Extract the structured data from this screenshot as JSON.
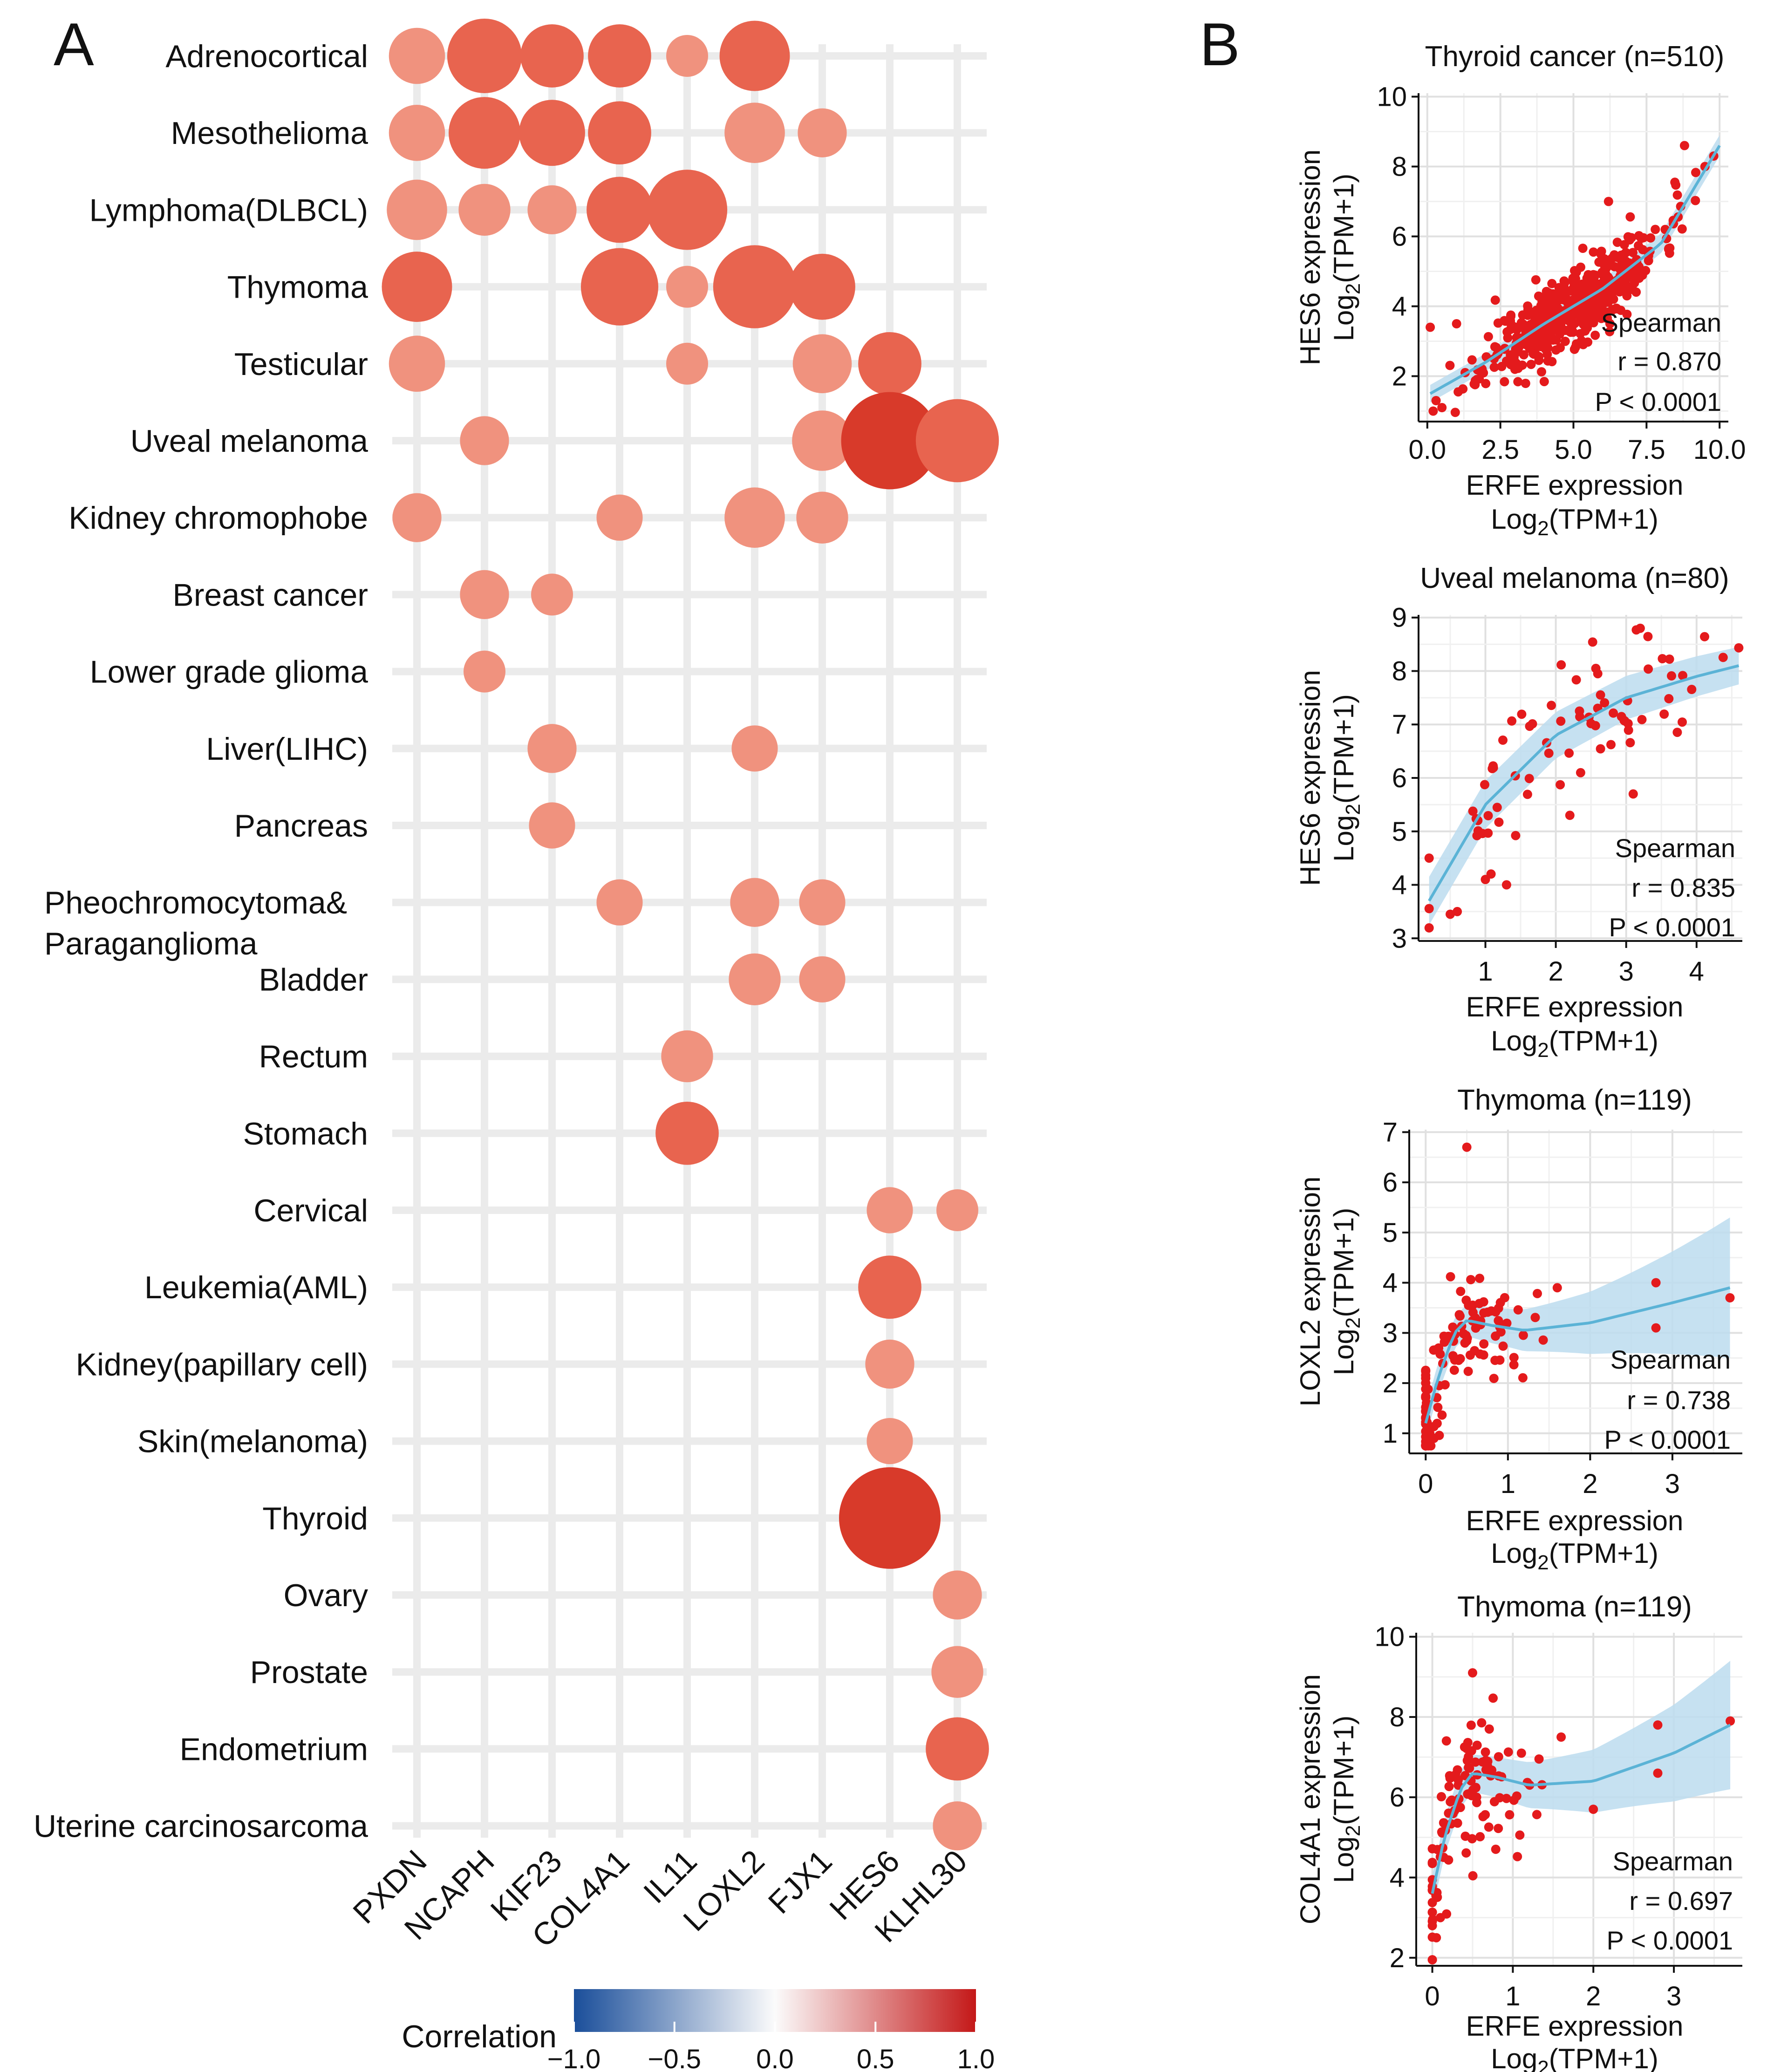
{
  "panel_labels": {
    "a": "A",
    "b": "B"
  },
  "colors": {
    "grid_bg": "#ebebeb",
    "dot_weak": "#f0927e",
    "dot_mid": "#e8644f",
    "dot_strong": "#d83a2a",
    "point": "#e41a1c",
    "fit_line": "#5bb3d6",
    "ci_band": "#bcdcee",
    "scale_neg": "#1a4e9a",
    "scale_mid": "#fbfbfb",
    "scale_pos": "#c41818"
  },
  "chart_data": [
    {
      "id": "dot",
      "type": "bubble",
      "genes": [
        "PXDN",
        "NCAPH",
        "KIF23",
        "COL4A1",
        "IL11",
        "LOXL2",
        "FJX1",
        "HES6",
        "KLHL30"
      ],
      "cancers": [
        "Adrenocortical",
        "Mesothelioma",
        "Lymphoma(DLBCL)",
        "Thymoma",
        "Testicular",
        "Uveal melanoma",
        "Kidney chromophobe",
        "Breast cancer",
        "Lower grade glioma",
        "Liver(LIHC)",
        "Pancreas",
        "Pheochromocytoma&\nParaganglioma",
        "Bladder",
        "Rectum",
        "Stomach",
        "Cervical",
        "Leukemia(AML)",
        "Kidney(papillary cell)",
        "Skin(melanoma)",
        "Thyroid",
        "Ovary",
        "Prostate",
        "Endometrium",
        "Uterine carcinosarcoma"
      ],
      "points": [
        [
          "PXDN",
          "Adrenocortical",
          0.55
        ],
        [
          "NCAPH",
          "Adrenocortical",
          0.68
        ],
        [
          "KIF23",
          "Adrenocortical",
          0.6
        ],
        [
          "COL4A1",
          "Adrenocortical",
          0.6
        ],
        [
          "IL11",
          "Adrenocortical",
          0.45
        ],
        [
          "LOXL2",
          "Adrenocortical",
          0.65
        ],
        [
          "PXDN",
          "Mesothelioma",
          0.55
        ],
        [
          "NCAPH",
          "Mesothelioma",
          0.66
        ],
        [
          "KIF23",
          "Mesothelioma",
          0.62
        ],
        [
          "COL4A1",
          "Mesothelioma",
          0.6
        ],
        [
          "LOXL2",
          "Mesothelioma",
          0.58
        ],
        [
          "FJX1",
          "Mesothelioma",
          0.5
        ],
        [
          "PXDN",
          "Lymphoma(DLBCL)",
          0.58
        ],
        [
          "NCAPH",
          "Lymphoma(DLBCL)",
          0.52
        ],
        [
          "KIF23",
          "Lymphoma(DLBCL)",
          0.5
        ],
        [
          "COL4A1",
          "Lymphoma(DLBCL)",
          0.62
        ],
        [
          "IL11",
          "Lymphoma(DLBCL)",
          0.72
        ],
        [
          "PXDN",
          "Thymoma",
          0.65
        ],
        [
          "COL4A1",
          "Thymoma",
          0.7
        ],
        [
          "IL11",
          "Thymoma",
          0.45
        ],
        [
          "LOXL2",
          "Thymoma",
          0.74
        ],
        [
          "FJX1",
          "Thymoma",
          0.62
        ],
        [
          "PXDN",
          "Testicular",
          0.55
        ],
        [
          "IL11",
          "Testicular",
          0.45
        ],
        [
          "FJX1",
          "Testicular",
          0.57
        ],
        [
          "HES6",
          "Testicular",
          0.6
        ],
        [
          "NCAPH",
          "Uveal melanoma",
          0.5
        ],
        [
          "FJX1",
          "Uveal melanoma",
          0.58
        ],
        [
          "HES6",
          "Uveal melanoma",
          0.84
        ],
        [
          "KLHL30",
          "Uveal melanoma",
          0.74
        ],
        [
          "PXDN",
          "Kidney chromophobe",
          0.5
        ],
        [
          "COL4A1",
          "Kidney chromophobe",
          0.48
        ],
        [
          "LOXL2",
          "Kidney chromophobe",
          0.58
        ],
        [
          "FJX1",
          "Kidney chromophobe",
          0.52
        ],
        [
          "NCAPH",
          "Breast cancer",
          0.5
        ],
        [
          "KIF23",
          "Breast cancer",
          0.45
        ],
        [
          "NCAPH",
          "Lower grade glioma",
          0.45
        ],
        [
          "KIF23",
          "Liver(LIHC)",
          0.5
        ],
        [
          "LOXL2",
          "Liver(LIHC)",
          0.48
        ],
        [
          "KIF23",
          "Pancreas",
          0.48
        ],
        [
          "COL4A1",
          "Pheochromocytoma&\nParaganglioma",
          0.48
        ],
        [
          "LOXL2",
          "Pheochromocytoma&\nParaganglioma",
          0.5
        ],
        [
          "FJX1",
          "Pheochromocytoma&\nParaganglioma",
          0.48
        ],
        [
          "LOXL2",
          "Bladder",
          0.52
        ],
        [
          "FJX1",
          "Bladder",
          0.48
        ],
        [
          "IL11",
          "Rectum",
          0.52
        ],
        [
          "IL11",
          "Stomach",
          0.6
        ],
        [
          "HES6",
          "Cervical",
          0.48
        ],
        [
          "KLHL30",
          "Cervical",
          0.45
        ],
        [
          "HES6",
          "Leukemia(AML)",
          0.6
        ],
        [
          "HES6",
          "Kidney(papillary cell)",
          0.5
        ],
        [
          "HES6",
          "Skin(melanoma)",
          0.48
        ],
        [
          "HES6",
          "Thyroid",
          0.87
        ],
        [
          "KLHL30",
          "Ovary",
          0.5
        ],
        [
          "KLHL30",
          "Prostate",
          0.52
        ],
        [
          "KLHL30",
          "Endometrium",
          0.6
        ],
        [
          "KLHL30",
          "Uterine carcinosarcoma",
          0.5
        ]
      ],
      "legend": {
        "title": "Correlation",
        "ticks": [
          "−1.0",
          "−0.5",
          "0.0",
          "0.5",
          "1.0"
        ],
        "range": [
          -1.0,
          1.0
        ]
      }
    },
    {
      "id": "s1",
      "type": "scatter",
      "title": "Thyroid cancer (n=510)",
      "ylabel1": "HES6 expression",
      "ylabel2": "Log",
      "ylabel_sub": "2",
      "ylabel_tail": "(TPM+1)",
      "xlabel1": "ERFE expression",
      "xlabel2": "Log",
      "xlabel_sub": "2",
      "xlabel_tail": "(TPM+1)",
      "xlim": [
        -0.3,
        10.3
      ],
      "ylim": [
        0.7,
        10.1
      ],
      "xticks": [
        0,
        2.5,
        5,
        7.5,
        10
      ],
      "xtick_labels": [
        "0.0",
        "2.5",
        "5.0",
        "7.5",
        "10.0"
      ],
      "yticks": [
        2,
        4,
        6,
        8,
        10
      ],
      "ytick_labels": [
        "2",
        "4",
        "6",
        "8",
        "10"
      ],
      "stats": [
        "Spearman",
        "r = 0.870",
        "P < 0.0001"
      ],
      "n_points": 510,
      "seed": 11,
      "curve": [
        [
          0.1,
          1.5
        ],
        [
          2,
          2.4
        ],
        [
          4,
          3.5
        ],
        [
          6,
          4.5
        ],
        [
          8,
          5.8
        ],
        [
          10,
          8.6
        ]
      ],
      "band_half_width": [
        0.25,
        0.3
      ],
      "cloud": {
        "x_mean": 5.0,
        "x_sd": 1.5,
        "x_min": 0.1,
        "x_max": 10.0,
        "noise_sd": 0.55
      },
      "extra_points": [
        [
          8.8,
          8.6
        ],
        [
          9.5,
          8.0
        ],
        [
          9.8,
          8.3
        ],
        [
          7.8,
          6.2
        ],
        [
          6.2,
          7.0
        ],
        [
          1.0,
          3.5
        ],
        [
          0.1,
          3.4
        ],
        [
          0.2,
          1.0
        ],
        [
          0.5,
          1.1
        ],
        [
          0.3,
          1.3
        ]
      ]
    },
    {
      "id": "s2",
      "type": "scatter",
      "title": "Uveal melanoma (n=80)",
      "ylabel1": "HES6 expression",
      "ylabel2": "Log",
      "ylabel_sub": "2",
      "ylabel_tail": "(TPM+1)",
      "xlabel1": "ERFE expression",
      "xlabel2": "Log",
      "xlabel_sub": "2",
      "xlabel_tail": "(TPM+1)",
      "xlim": [
        0.05,
        4.65
      ],
      "ylim": [
        2.95,
        9.05
      ],
      "xticks": [
        1,
        2,
        3,
        4
      ],
      "xtick_labels": [
        "1",
        "2",
        "3",
        "4"
      ],
      "yticks": [
        3,
        4,
        5,
        6,
        7,
        8,
        9
      ],
      "ytick_labels": [
        "3",
        "4",
        "5",
        "6",
        "7",
        "8",
        "9"
      ],
      "stats": [
        "Spearman",
        "r = 0.835",
        "P < 0.0001"
      ],
      "n_points": 80,
      "seed": 23,
      "curve": [
        [
          0.2,
          3.7
        ],
        [
          1,
          5.5
        ],
        [
          2,
          6.8
        ],
        [
          3,
          7.5
        ],
        [
          4,
          7.9
        ],
        [
          4.6,
          8.1
        ]
      ],
      "band_half_width": [
        0.45,
        0.35
      ],
      "cloud": {
        "x_mean": 2.2,
        "x_sd": 1.05,
        "x_min": 0.2,
        "x_max": 4.6,
        "noise_sd": 0.55
      },
      "extra_points": [
        [
          3.2,
          8.8
        ],
        [
          3.1,
          5.7
        ],
        [
          1.0,
          4.1
        ],
        [
          0.6,
          3.5
        ],
        [
          0.5,
          3.45
        ],
        [
          2.2,
          5.3
        ],
        [
          1.3,
          4.0
        ]
      ]
    },
    {
      "id": "s3",
      "type": "scatter",
      "title": "Thymoma (n=119)",
      "ylabel1": "LOXL2 expression",
      "ylabel2": "Log",
      "ylabel_sub": "2",
      "ylabel_tail": "(TPM+1)",
      "xlabel1": "ERFE expression",
      "xlabel2": "Log",
      "xlabel_sub": "2",
      "xlabel_tail": "(TPM+1)",
      "xlim": [
        -0.2,
        3.85
      ],
      "ylim": [
        0.6,
        7.05
      ],
      "xticks": [
        0,
        1,
        2,
        3
      ],
      "xtick_labels": [
        "0",
        "1",
        "2",
        "3"
      ],
      "yticks": [
        1,
        2,
        3,
        4,
        5,
        6,
        7
      ],
      "ytick_labels": [
        "1",
        "2",
        "3",
        "4",
        "5",
        "6",
        "7"
      ],
      "stats": [
        "Spearman",
        "r = 0.738",
        "P < 0.0001"
      ],
      "n_points": 119,
      "seed": 37,
      "curve": [
        [
          0,
          1.2
        ],
        [
          0.15,
          2.1
        ],
        [
          0.35,
          3.0
        ],
        [
          0.5,
          3.25
        ],
        [
          0.8,
          3.15
        ],
        [
          1.2,
          3.05
        ],
        [
          2,
          3.2
        ],
        [
          3,
          3.6
        ],
        [
          3.7,
          3.9
        ]
      ],
      "band_half_width": [
        0.3,
        1.4
      ],
      "cloud": {
        "x_mean": 0.4,
        "x_sd": 0.45,
        "x_min": 0.0,
        "x_max": 1.6,
        "noise_sd": 0.55
      },
      "extra_points": [
        [
          0.5,
          6.7
        ],
        [
          2.8,
          4.0
        ],
        [
          3.7,
          3.7
        ],
        [
          1.6,
          3.9
        ],
        [
          2.8,
          3.1
        ],
        [
          0.1,
          0.9
        ],
        [
          0.05,
          1.0
        ],
        [
          0.0,
          1.3
        ]
      ]
    },
    {
      "id": "s4",
      "type": "scatter",
      "title": "Thymoma (n=119)",
      "ylabel1": "COL4A1 expression",
      "ylabel2": "Log",
      "ylabel_sub": "2",
      "ylabel_tail": "(TPM+1)",
      "xlabel1": "ERFE expression",
      "xlabel2": "Log",
      "xlabel_sub": "2",
      "xlabel_tail": "(TPM+1)",
      "xlim": [
        -0.2,
        3.85
      ],
      "ylim": [
        1.8,
        10.1
      ],
      "xticks": [
        0,
        1,
        2,
        3
      ],
      "xtick_labels": [
        "0",
        "1",
        "2",
        "3"
      ],
      "yticks": [
        2,
        4,
        6,
        8,
        10
      ],
      "ytick_labels": [
        "2",
        "4",
        "6",
        "8",
        "10"
      ],
      "stats": [
        "Spearman",
        "r = 0.697",
        "P < 0.0001"
      ],
      "n_points": 119,
      "seed": 53,
      "curve": [
        [
          0,
          3.6
        ],
        [
          0.15,
          5.0
        ],
        [
          0.35,
          6.2
        ],
        [
          0.5,
          6.6
        ],
        [
          0.8,
          6.5
        ],
        [
          1.2,
          6.3
        ],
        [
          2,
          6.4
        ],
        [
          3,
          7.1
        ],
        [
          3.7,
          7.8
        ]
      ],
      "band_half_width": [
        0.45,
        1.6
      ],
      "cloud": {
        "x_mean": 0.45,
        "x_sd": 0.45,
        "x_min": 0.0,
        "x_max": 1.6,
        "noise_sd": 0.9
      },
      "extra_points": [
        [
          0.5,
          9.1
        ],
        [
          2.8,
          7.8
        ],
        [
          3.7,
          7.9
        ],
        [
          2.8,
          6.6
        ],
        [
          1.6,
          7.5
        ],
        [
          2.0,
          5.7
        ],
        [
          0.05,
          2.5
        ],
        [
          0.0,
          2.8
        ],
        [
          0.1,
          3.0
        ]
      ]
    }
  ]
}
